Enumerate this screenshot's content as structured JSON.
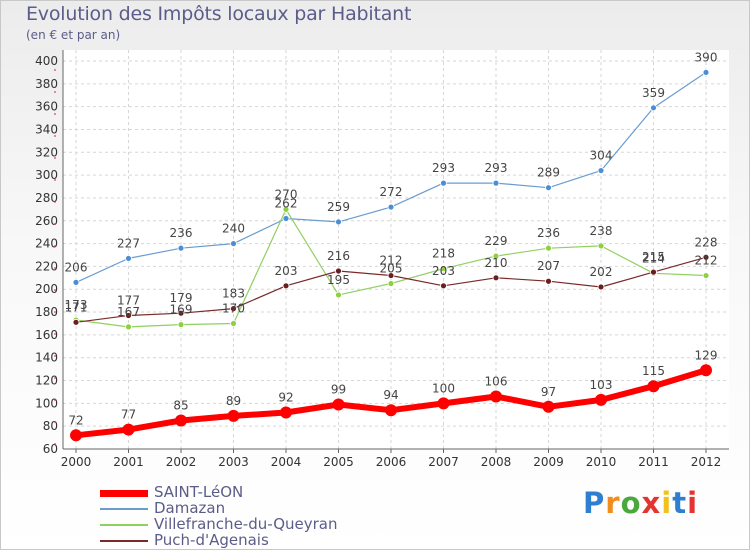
{
  "title": "Evolution des Impôts locaux par Habitant",
  "subtitle": "(en € et par an)",
  "logo": {
    "text": "Proxiti",
    "letters": [
      {
        "ch": "P",
        "color": "#2f7fd1"
      },
      {
        "ch": "r",
        "color": "#f28c1c"
      },
      {
        "ch": "o",
        "color": "#4aa83c"
      },
      {
        "ch": "x",
        "color": "#e3342f"
      },
      {
        "ch": "i",
        "color": "#f2c21c"
      },
      {
        "ch": "t",
        "color": "#2f7fd1"
      },
      {
        "ch": "i",
        "color": "#e3342f"
      }
    ]
  },
  "chart_data": {
    "type": "line",
    "title": "Evolution des Impôts locaux par Habitant",
    "subtitle": "(en € et par an)",
    "xlabel": "",
    "ylabel": "",
    "x": [
      "2000",
      "2001",
      "2002",
      "2003",
      "2004",
      "2005",
      "2006",
      "2007",
      "2008",
      "2009",
      "2010",
      "2011",
      "2012"
    ],
    "ylim": [
      60,
      400
    ],
    "yticks": [
      60,
      80,
      100,
      120,
      140,
      160,
      180,
      200,
      220,
      240,
      260,
      280,
      300,
      320,
      340,
      360,
      380,
      400
    ],
    "grid": true,
    "legend_position": "bottom-left",
    "series": [
      {
        "name": "SAINT-LéON",
        "color": "#ff0000",
        "values": [
          72,
          77,
          85,
          89,
          92,
          99,
          94,
          100,
          106,
          97,
          103,
          115,
          129
        ]
      },
      {
        "name": "Damazan",
        "color": "#6a9cd0",
        "values": [
          206,
          227,
          236,
          240,
          262,
          259,
          272,
          293,
          293,
          289,
          304,
          359,
          390
        ]
      },
      {
        "name": "Villefranche-du-Queyran",
        "color": "#90d060",
        "values": [
          173,
          167,
          169,
          170,
          270,
          195,
          205,
          218,
          229,
          236,
          238,
          214,
          212
        ]
      },
      {
        "name": "Puch-d'Agenais",
        "color": "#7a2a2a",
        "values": [
          171,
          177,
          179,
          183,
          203,
          216,
          212,
          203,
          210,
          207,
          202,
          215,
          228
        ]
      }
    ]
  }
}
